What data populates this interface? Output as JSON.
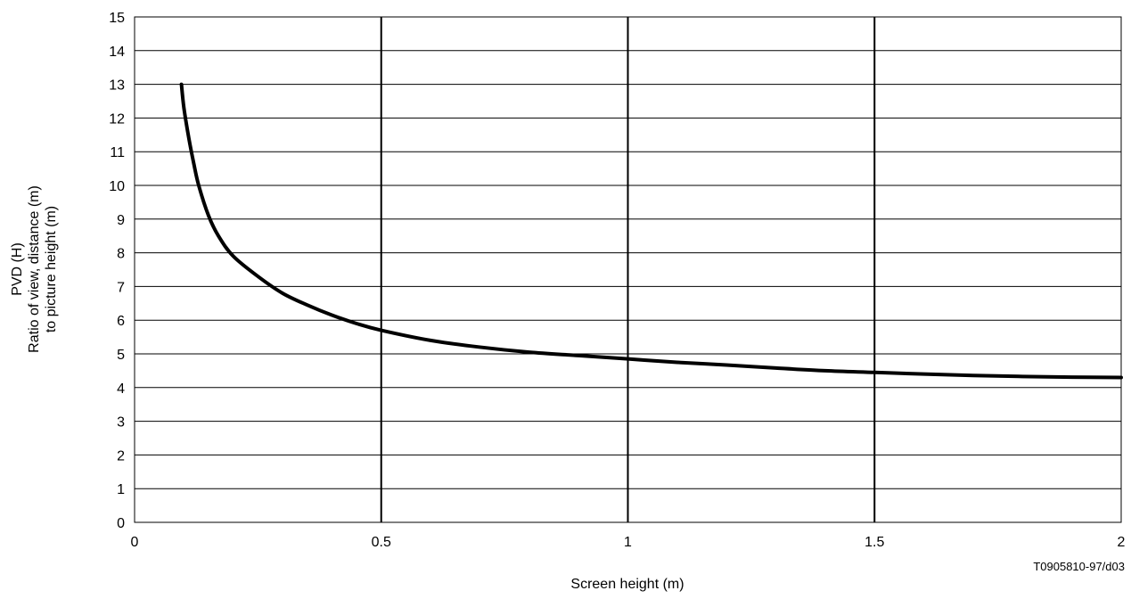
{
  "chart_data": {
    "type": "line",
    "title": "",
    "xlabel": "Screen height (m)",
    "ylabel_lines": [
      "PVD (H)",
      "Ratio of view, distance (m)",
      "to picture height (m)"
    ],
    "xlim": [
      0,
      2
    ],
    "ylim": [
      0,
      15
    ],
    "x_ticks": [
      0,
      0.5,
      1,
      1.5,
      2
    ],
    "x_tick_labels": [
      "0",
      "0.5",
      "1",
      "1.5",
      "2"
    ],
    "y_ticks": [
      0,
      1,
      2,
      3,
      4,
      5,
      6,
      7,
      8,
      9,
      10,
      11,
      12,
      13,
      14,
      15
    ],
    "y_tick_labels": [
      "0",
      "1",
      "2",
      "3",
      "4",
      "5",
      "6",
      "7",
      "8",
      "9",
      "10",
      "11",
      "12",
      "13",
      "14",
      "15"
    ],
    "grid": {
      "horizontal": true,
      "vertical": true
    },
    "reference": "T0905810-97/d03",
    "series": [
      {
        "x": [
          0.095,
          0.1,
          0.11,
          0.12,
          0.13,
          0.15,
          0.17,
          0.2,
          0.25,
          0.3,
          0.35,
          0.4,
          0.45,
          0.5,
          0.6,
          0.7,
          0.8,
          0.9,
          1.0,
          1.1,
          1.2,
          1.3,
          1.4,
          1.5,
          1.6,
          1.7,
          1.8,
          1.9,
          2.0
        ],
        "y": [
          13.0,
          12.3,
          11.4,
          10.65,
          10.0,
          9.1,
          8.5,
          7.9,
          7.3,
          6.8,
          6.45,
          6.15,
          5.9,
          5.7,
          5.4,
          5.2,
          5.05,
          4.95,
          4.85,
          4.75,
          4.67,
          4.58,
          4.5,
          4.45,
          4.4,
          4.36,
          4.33,
          4.31,
          4.3
        ]
      }
    ]
  }
}
